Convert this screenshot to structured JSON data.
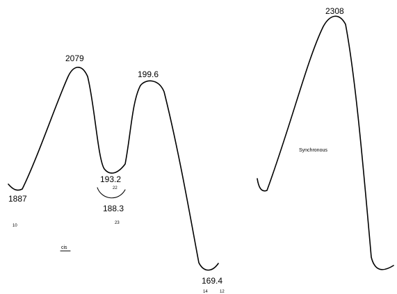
{
  "left_profile": {
    "peaks": [
      "2079",
      "199.6"
    ],
    "wells": [
      "1887",
      "193.2",
      "188.3",
      "169.4"
    ],
    "well_sublabels": {
      "start": "10",
      "mid": "22",
      "alt": "23",
      "end_a": "14",
      "end_b": "12"
    },
    "caption": "cis"
  },
  "right_profile": {
    "peak": "2308",
    "caption": "Synchronous"
  },
  "colors": {
    "line": "#000000",
    "background": "#ffffff"
  }
}
